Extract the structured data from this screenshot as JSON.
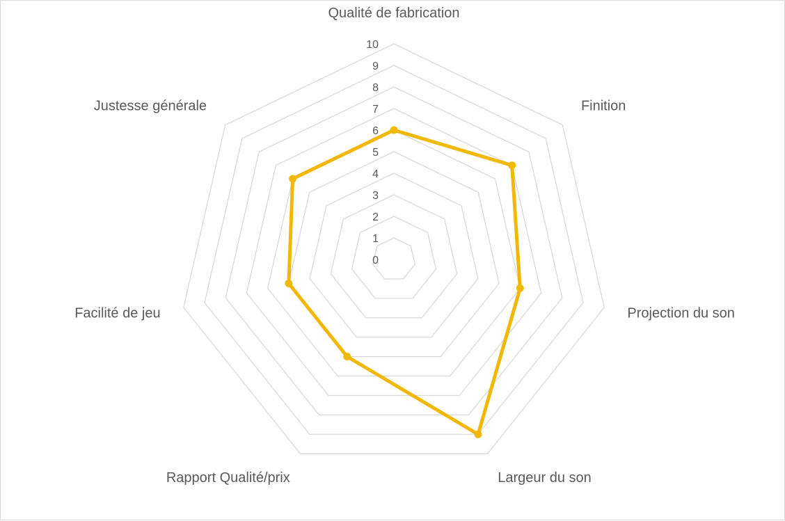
{
  "chart_data": {
    "type": "radar",
    "categories": [
      "Qualité de fabrication",
      "Finition",
      "Projection du son",
      "Largeur du son",
      "Rapport Qualité/prix",
      "Facilité de jeu",
      "Justesse générale"
    ],
    "series": [
      {
        "values": [
          6,
          7,
          6,
          9,
          5,
          5,
          6
        ],
        "color": "#f2b807"
      }
    ],
    "rlim": [
      0,
      10
    ],
    "ticks": [
      "0",
      "1",
      "2",
      "3",
      "4",
      "5",
      "6",
      "7",
      "8",
      "9",
      "10"
    ],
    "grid": true,
    "grid_color": "#d9d9d9",
    "legend": false
  }
}
